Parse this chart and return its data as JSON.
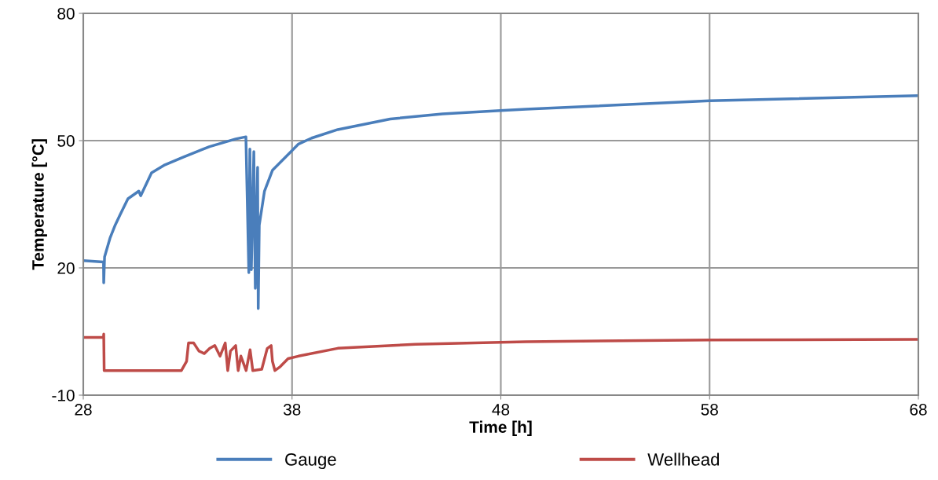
{
  "chart_data": {
    "type": "line",
    "xlabel": "Time [h]",
    "ylabel": "Temperature [°C]",
    "xlim": [
      28,
      68
    ],
    "ylim": [
      -10,
      80
    ],
    "xticks": [
      28,
      38,
      48,
      58,
      68
    ],
    "yticks": [
      -10,
      20,
      50,
      80
    ],
    "grid": true,
    "legend": "bottom",
    "marker": "none",
    "line_style": "solid",
    "series": [
      {
        "name": "Gauge",
        "color": "#4a7ebb",
        "x": [
          28,
          28.97,
          28.98,
          29.02,
          29.28,
          29.53,
          29.77,
          30.14,
          30.66,
          30.75,
          31.27,
          31.91,
          32.78,
          34.05,
          35.3,
          35.79,
          35.93,
          35.98,
          36.05,
          36.17,
          36.24,
          36.35,
          36.38,
          36.43,
          36.68,
          37.06,
          37.81,
          38.31,
          38.94,
          40.19,
          42.7,
          45.2,
          47.97,
          49.2,
          58,
          68
        ],
        "values": [
          21.7,
          21.4,
          16.5,
          22.6,
          27,
          30.1,
          32.6,
          36.3,
          38.1,
          37,
          42.4,
          44.3,
          46.1,
          48.6,
          50.4,
          50.9,
          18.9,
          48,
          19.6,
          47.4,
          15.2,
          43.7,
          10.4,
          30.1,
          38.1,
          43,
          46.7,
          49.2,
          50.6,
          52.6,
          55.1,
          56.3,
          57.1,
          57.4,
          59.4,
          60.6
        ]
      },
      {
        "name": "Wellhead",
        "color": "#be4b48",
        "x": [
          28,
          28.97,
          28.98,
          29.0,
          30.5,
          31.5,
          32.7,
          32.95,
          33.04,
          33.29,
          33.54,
          33.8,
          34.05,
          34.3,
          34.55,
          34.8,
          34.92,
          35.05,
          35.3,
          35.42,
          35.55,
          35.8,
          35.99,
          36.12,
          36.55,
          36.81,
          37.0,
          37.06,
          37.18,
          37.43,
          37.81,
          38.31,
          40.19,
          43.9,
          49.2,
          58,
          68
        ],
        "values": [
          3.6,
          3.6,
          4.4,
          -4.2,
          -4.2,
          -4.2,
          -4.2,
          -2.0,
          2.3,
          2.3,
          0.4,
          -0.2,
          1.0,
          1.7,
          -0.8,
          2.3,
          -4.2,
          0.4,
          1.7,
          -4.2,
          -0.8,
          -4.2,
          0.7,
          -4.2,
          -3.9,
          1.0,
          1.7,
          -2.0,
          -4.2,
          -3.3,
          -1.4,
          -0.8,
          1.05,
          2.0,
          2.6,
          3.0,
          3.15
        ]
      }
    ]
  }
}
